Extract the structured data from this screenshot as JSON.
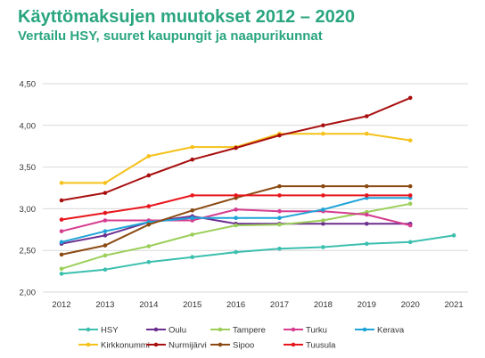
{
  "header": {
    "title": "Käyttömaksujen muutokset 2012 – 2020",
    "subtitle": "Vertailu HSY, suuret kaupungit ja naapurikunnat"
  },
  "chart_data": {
    "type": "line",
    "title": "Käyttömaksujen muutokset 2012 – 2020",
    "subtitle": "Vertailu HSY, suuret kaupungit ja naapurikunnat",
    "xlabel": "",
    "ylabel": "",
    "x": [
      "2012",
      "2013",
      "2014",
      "2015",
      "2016",
      "2017",
      "2018",
      "2019",
      "2020",
      "2021"
    ],
    "yticks": [
      "2,00",
      "2,50",
      "3,00",
      "3,50",
      "4,00",
      "4,50"
    ],
    "ylim": [
      2.0,
      4.5
    ],
    "grid": true,
    "legend_position": "bottom",
    "series": [
      {
        "name": "HSY",
        "color": "#3bbfae",
        "values": [
          2.22,
          2.27,
          2.36,
          2.42,
          2.48,
          2.52,
          2.54,
          2.58,
          2.6,
          2.68
        ]
      },
      {
        "name": "Oulu",
        "color": "#6c2f8f",
        "values": [
          2.58,
          2.68,
          2.84,
          2.91,
          2.82,
          2.82,
          2.82,
          2.82,
          2.82,
          null
        ]
      },
      {
        "name": "Tampere",
        "color": "#9ccf5a",
        "values": [
          2.28,
          2.44,
          2.55,
          2.69,
          2.8,
          2.81,
          2.86,
          2.96,
          3.06,
          null
        ]
      },
      {
        "name": "Turku",
        "color": "#d63d8f",
        "values": [
          2.73,
          2.86,
          2.86,
          2.86,
          2.99,
          2.97,
          2.97,
          2.93,
          2.8,
          null
        ]
      },
      {
        "name": "Kerava",
        "color": "#1ea3d8",
        "values": [
          2.6,
          2.73,
          2.84,
          2.89,
          2.89,
          2.89,
          2.99,
          3.13,
          3.13,
          null
        ]
      },
      {
        "name": "Kirkkonummi",
        "color": "#f5c11a",
        "values": [
          3.31,
          3.31,
          3.63,
          3.74,
          3.74,
          3.9,
          3.9,
          3.9,
          3.82,
          null
        ]
      },
      {
        "name": "Nurmijärvi",
        "color": "#a80f0f",
        "values": [
          3.1,
          3.19,
          3.4,
          3.59,
          3.73,
          3.88,
          4.0,
          4.11,
          4.33,
          null
        ]
      },
      {
        "name": "Sipoo",
        "color": "#8b4a12",
        "values": [
          2.45,
          2.56,
          2.81,
          2.98,
          3.13,
          3.27,
          3.27,
          3.27,
          3.27,
          null
        ]
      },
      {
        "name": "Tuusula",
        "color": "#e8161c",
        "values": [
          2.87,
          2.95,
          3.03,
          3.16,
          3.16,
          3.16,
          3.16,
          3.16,
          3.16,
          null
        ]
      }
    ]
  }
}
